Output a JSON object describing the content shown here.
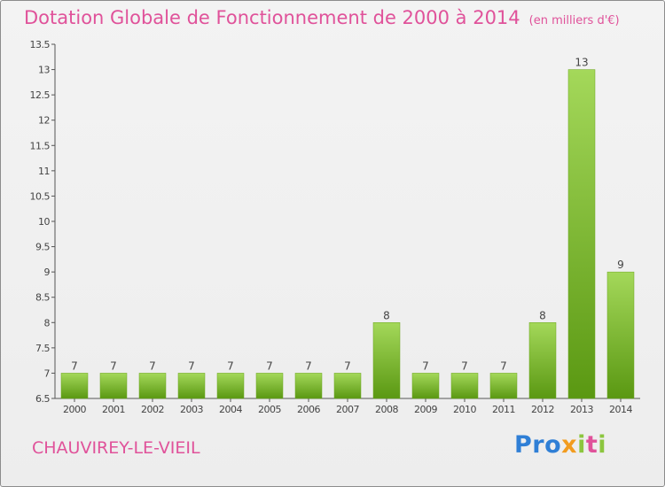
{
  "title": "Dotation Globale de Fonctionnement de 2000 à 2014",
  "unit": "(en milliers d'€)",
  "commune": "CHAUVIREY-LE-VIEIL",
  "logo": {
    "p1": "Pro",
    "p2": "x",
    "p3": "i",
    "p4": "t",
    "p5": "i"
  },
  "colors": {
    "title": "#e0529a",
    "bar_top": "#9ed24f",
    "bar_bottom": "#5c9a12",
    "axis": "#555555"
  },
  "chart_data": {
    "type": "bar",
    "title": "Dotation Globale de Fonctionnement de 2000 à 2014",
    "xlabel": "",
    "ylabel": "",
    "ylim": [
      6.5,
      13.5
    ],
    "yticks": [
      6.5,
      7,
      7.5,
      8,
      8.5,
      9,
      9.5,
      10,
      10.5,
      11,
      11.5,
      12,
      12.5,
      13,
      13.5
    ],
    "categories": [
      "2000",
      "2001",
      "2002",
      "2003",
      "2004",
      "2005",
      "2006",
      "2007",
      "2008",
      "2009",
      "2010",
      "2011",
      "2012",
      "2013",
      "2014"
    ],
    "values": [
      7,
      7,
      7,
      7,
      7,
      7,
      7,
      7,
      8,
      7,
      7,
      7,
      8,
      13,
      9
    ],
    "data_labels": [
      "7",
      "7",
      "7",
      "7",
      "7",
      "7",
      "7",
      "7",
      "8",
      "7",
      "7",
      "7",
      "8",
      "13",
      "9"
    ]
  }
}
